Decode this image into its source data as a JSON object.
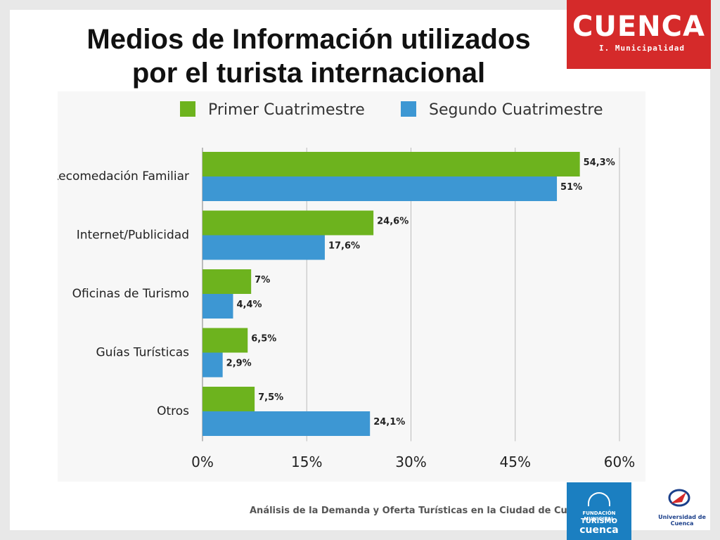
{
  "slide": {
    "title_line1": "Medios de Información utilizados",
    "title_line2": "por el turista internacional",
    "footer_text": "Análisis de la Demanda y Oferta Turísticas en la Ciudad de Cuenca"
  },
  "logos": {
    "cuenca_word": "CUENCA",
    "cuenca_sub": "I. Municipalidad",
    "turismo_small": "FUNDACIÓN MUNICIPAL",
    "turismo_word": "TURISMO",
    "turismo_word2": "cuenca",
    "university": "Universidad de Cuenca"
  },
  "colors": {
    "series1": "#6db31e",
    "series2": "#3d97d3",
    "brand_red": "#d52a2a",
    "brand_blue": "#1b7fc1"
  },
  "chart_data": {
    "type": "bar",
    "orientation": "horizontal",
    "categories": [
      "Recomedación Familiar",
      "Internet/Publicidad",
      "Oficinas de Turismo",
      "Guías Turísticas",
      "Otros"
    ],
    "series": [
      {
        "name": "Primer Cuatrimestre",
        "values": [
          54.3,
          24.6,
          7,
          6.5,
          7.5
        ],
        "labels": [
          "54,3%",
          "24,6%",
          "7%",
          "6,5%",
          "7,5%"
        ]
      },
      {
        "name": "Segundo Cuatrimestre",
        "values": [
          51,
          17.6,
          4.4,
          2.9,
          24.1
        ],
        "labels": [
          "51%",
          "17,6%",
          "4,4%",
          "2,9%",
          "24,1%"
        ]
      }
    ],
    "x_ticks": [
      0,
      15,
      30,
      45,
      60
    ],
    "x_tick_labels": [
      "0%",
      "15%",
      "30%",
      "45%",
      "60%"
    ],
    "xlim": [
      0,
      60
    ],
    "grid": true,
    "legend_position": "top"
  }
}
